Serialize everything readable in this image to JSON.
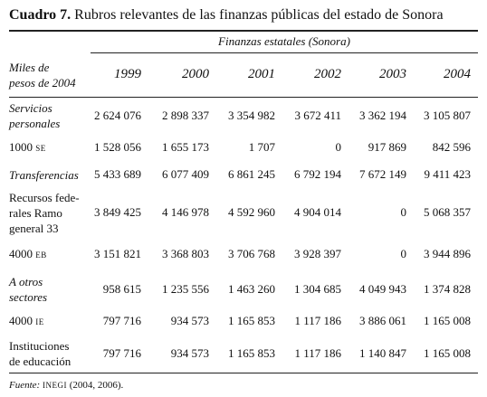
{
  "title": {
    "number": "Cuadro 7.",
    "text": "Rubros relevantes de las finanzas públicas del estado de Sonora"
  },
  "table": {
    "group_header": "Finanzas estatales (Sonora)",
    "corner": [
      "Miles de",
      "pesos de 2004"
    ],
    "columns": [
      "1999",
      "2000",
      "2001",
      "2002",
      "2003",
      "2004"
    ],
    "rows": [
      {
        "label": [
          "Servicios",
          "personales"
        ],
        "italic": true,
        "values": [
          "2 624 076",
          "2 898 337",
          "3 354 982",
          "3 672 411",
          "3 362 194",
          "3 105 807"
        ]
      },
      {
        "label": [
          "1000"
        ],
        "code": "SE",
        "italic": false,
        "values": [
          "1 528 056",
          "1 655 173",
          "1 707",
          "0",
          "917 869",
          "842 596"
        ]
      },
      {
        "label": [
          "Transferencias"
        ],
        "italic": true,
        "values": [
          "5 433 689",
          "6 077 409",
          "6 861 245",
          "6 792 194",
          "7 672 149",
          "9 411 423"
        ]
      },
      {
        "label": [
          "Recursos fede-",
          "rales Ramo",
          "general 33"
        ],
        "italic": false,
        "values": [
          "3 849 425",
          "4 146 978",
          "4 592 960",
          "4 904 014",
          "0",
          "5 068 357"
        ]
      },
      {
        "label": [
          "4000"
        ],
        "code": "EB",
        "italic": false,
        "values": [
          "3 151 821",
          "3 368 803",
          "3 706 768",
          "3 928 397",
          "0",
          "3 944 896"
        ]
      },
      {
        "label": [
          "A otros",
          "sectores"
        ],
        "italic": true,
        "values": [
          "958 615",
          "1 235 556",
          "1 463 260",
          "1 304 685",
          "4 049 943",
          "1 374 828"
        ]
      },
      {
        "label": [
          "4000"
        ],
        "code": "IE",
        "italic": false,
        "values": [
          "797 716",
          "934 573",
          "1 165 853",
          "1 117 186",
          "3 886 061",
          "1 165 008"
        ]
      },
      {
        "label": [
          "Instituciones",
          "de educación"
        ],
        "italic": false,
        "values": [
          "797 716",
          "934 573",
          "1 165 853",
          "1 117 186",
          "1 140 847",
          "1 165 008"
        ]
      }
    ]
  },
  "note": {
    "label": "Fuente:",
    "source": "INEGI",
    "text": "(2004, 2006)."
  }
}
